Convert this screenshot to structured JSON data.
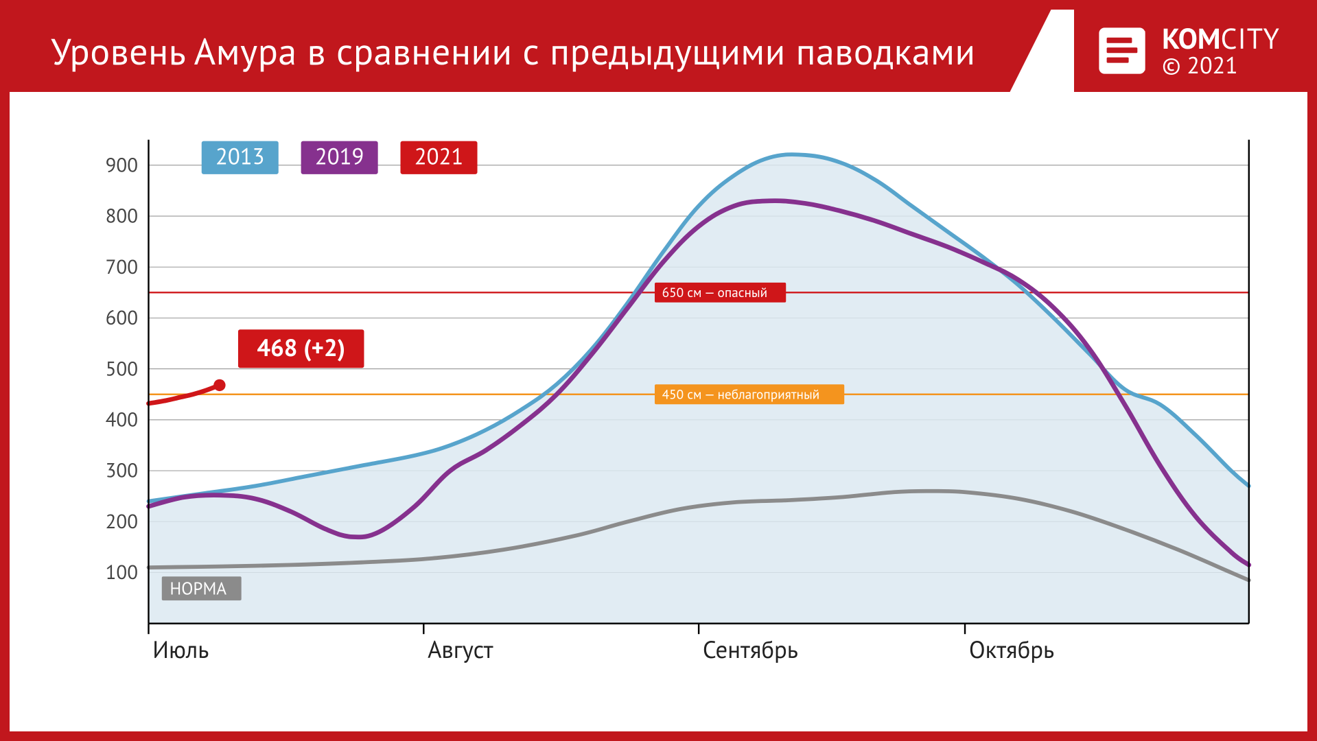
{
  "header": {
    "title": "Уровень Амура в сравнении с предыдущими паводками",
    "brand_kom": "KOM",
    "brand_city": "CITY",
    "copyright": "© 2021"
  },
  "chart": {
    "type": "line",
    "background_color": "#ffffff",
    "axis_color": "#000000",
    "grid_color": "#888888",
    "ylim": [
      0,
      950
    ],
    "ytick_values": [
      100,
      200,
      300,
      400,
      500,
      600,
      700,
      800,
      900
    ],
    "x_domain": [
      0,
      124
    ],
    "month_starts": [
      0,
      31,
      62,
      92
    ],
    "x_labels": [
      "Июль",
      "Август",
      "Сентябрь",
      "Октябрь"
    ],
    "xlabel_color": "#222222",
    "xlabel_fontsize": 36,
    "ylabel_color": "#444444",
    "ylabel_fontsize": 30,
    "series": {
      "y2013": {
        "label": "2013",
        "color": "#57a4cc",
        "line_width": 6,
        "fill_color": "#dce9f1",
        "fill_opacity": 0.85,
        "points": [
          [
            0,
            240
          ],
          [
            6,
            255
          ],
          [
            12,
            270
          ],
          [
            18,
            290
          ],
          [
            24,
            310
          ],
          [
            30,
            330
          ],
          [
            34,
            350
          ],
          [
            38,
            380
          ],
          [
            42,
            420
          ],
          [
            46,
            470
          ],
          [
            50,
            540
          ],
          [
            54,
            630
          ],
          [
            58,
            730
          ],
          [
            62,
            820
          ],
          [
            66,
            880
          ],
          [
            70,
            915
          ],
          [
            74,
            920
          ],
          [
            78,
            905
          ],
          [
            82,
            870
          ],
          [
            86,
            820
          ],
          [
            90,
            770
          ],
          [
            94,
            720
          ],
          [
            98,
            665
          ],
          [
            102,
            600
          ],
          [
            106,
            530
          ],
          [
            110,
            460
          ],
          [
            114,
            430
          ],
          [
            118,
            370
          ],
          [
            122,
            300
          ],
          [
            124,
            270
          ]
        ]
      },
      "y2019": {
        "label": "2019",
        "color": "#86318e",
        "line_width": 7,
        "points": [
          [
            0,
            230
          ],
          [
            4,
            248
          ],
          [
            8,
            252
          ],
          [
            12,
            245
          ],
          [
            16,
            220
          ],
          [
            20,
            185
          ],
          [
            23,
            170
          ],
          [
            26,
            180
          ],
          [
            30,
            230
          ],
          [
            34,
            300
          ],
          [
            38,
            340
          ],
          [
            42,
            390
          ],
          [
            46,
            450
          ],
          [
            50,
            530
          ],
          [
            54,
            620
          ],
          [
            58,
            710
          ],
          [
            62,
            780
          ],
          [
            66,
            820
          ],
          [
            70,
            830
          ],
          [
            74,
            825
          ],
          [
            78,
            810
          ],
          [
            82,
            790
          ],
          [
            86,
            765
          ],
          [
            90,
            740
          ],
          [
            94,
            710
          ],
          [
            98,
            675
          ],
          [
            102,
            620
          ],
          [
            106,
            540
          ],
          [
            110,
            430
          ],
          [
            114,
            310
          ],
          [
            118,
            210
          ],
          [
            122,
            140
          ],
          [
            124,
            115
          ]
        ]
      },
      "y2021": {
        "label": "2021",
        "color": "#cf1619",
        "line_width": 7,
        "points": [
          [
            0,
            432
          ],
          [
            2,
            438
          ],
          [
            3.5,
            444
          ],
          [
            5,
            450
          ],
          [
            6.5,
            458
          ],
          [
            8,
            468
          ]
        ],
        "marker": {
          "at": [
            8,
            468
          ],
          "r": 9
        }
      },
      "norma": {
        "label": "НОРМА",
        "color": "#8b8b8b",
        "line_width": 6,
        "points": [
          [
            0,
            110
          ],
          [
            8,
            112
          ],
          [
            16,
            115
          ],
          [
            24,
            120
          ],
          [
            32,
            128
          ],
          [
            40,
            145
          ],
          [
            48,
            172
          ],
          [
            54,
            200
          ],
          [
            60,
            225
          ],
          [
            66,
            238
          ],
          [
            72,
            242
          ],
          [
            78,
            248
          ],
          [
            84,
            258
          ],
          [
            88,
            260
          ],
          [
            92,
            258
          ],
          [
            98,
            245
          ],
          [
            104,
            220
          ],
          [
            110,
            185
          ],
          [
            116,
            145
          ],
          [
            122,
            100
          ],
          [
            124,
            85
          ]
        ]
      }
    },
    "thresholds": [
      {
        "value": 650,
        "color": "#cf1619",
        "label": "650 см — опасный"
      },
      {
        "value": 450,
        "color": "#f4941e",
        "label": "450 см — неблагоприятный"
      }
    ],
    "current_value": {
      "text": "468 (+2)",
      "at": [
        8,
        468
      ],
      "box_color": "#cf1619",
      "text_color": "#ffffff"
    },
    "legend_order": [
      "y2013",
      "y2019",
      "y2021"
    ],
    "norma_label": "НОРМА"
  }
}
